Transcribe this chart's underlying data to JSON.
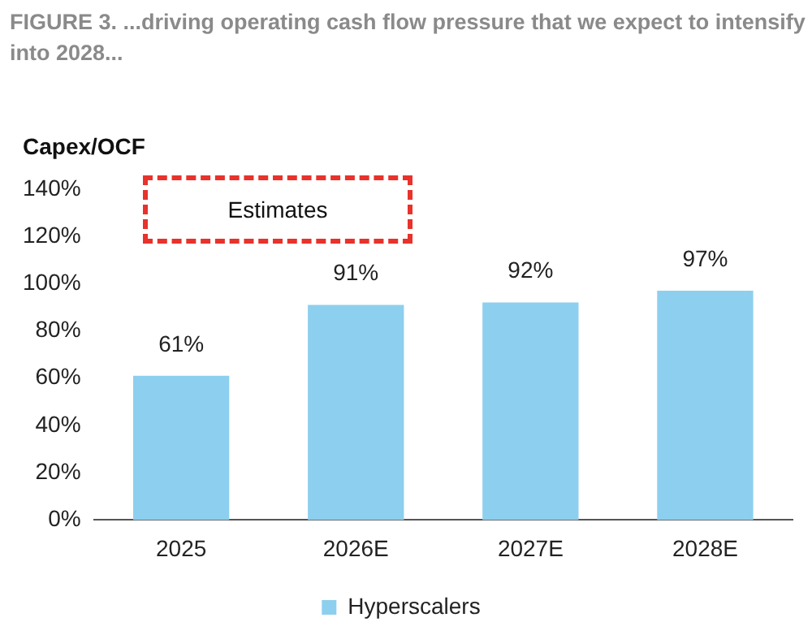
{
  "chart_data": {
    "type": "bar",
    "title": "FIGURE 3. ...driving operating cash flow pressure that we expect to intensify into 2028...",
    "ylabel": "Capex/OCF",
    "categories": [
      "2025",
      "2026E",
      "2027E",
      "2028E"
    ],
    "series": [
      {
        "name": "Hyperscalers",
        "color": "#8dcfee",
        "values": [
          61,
          91,
          92,
          97
        ],
        "value_labels": [
          "61%",
          "91%",
          "92%",
          "97%"
        ]
      }
    ],
    "ylim": [
      0,
      140
    ],
    "yticks": [
      {
        "value": 0,
        "label": "0%"
      },
      {
        "value": 20,
        "label": "20%"
      },
      {
        "value": 40,
        "label": "40%"
      },
      {
        "value": 60,
        "label": "60%"
      },
      {
        "value": 80,
        "label": "80%"
      },
      {
        "value": 100,
        "label": "100%"
      },
      {
        "value": 120,
        "label": "120%"
      },
      {
        "value": 140,
        "label": "140%"
      }
    ],
    "annotations": [
      "Estimates"
    ],
    "grid": false,
    "legend": "bottom"
  }
}
